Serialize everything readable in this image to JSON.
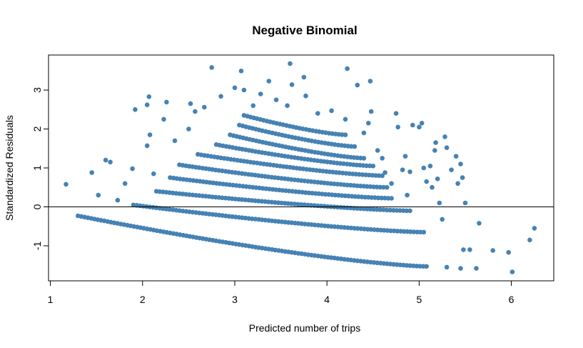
{
  "chart_data": {
    "type": "scatter",
    "title": "Negative Binomial",
    "xlabel": "Predicted number of trips",
    "ylabel": "Standardized Residuals",
    "xlim": [
      0.98,
      6.46
    ],
    "ylim": [
      -1.9,
      3.9
    ],
    "xticks": [
      1,
      2,
      3,
      4,
      5,
      6
    ],
    "yticks": [
      -1,
      0,
      1,
      2,
      3
    ],
    "reference_line_y": 0,
    "grid": false,
    "legend": "none",
    "point_color": "#4682b4",
    "bands": [
      {
        "x_start": 1.3,
        "x_end": 5.08,
        "y_start": -0.23,
        "y_end": -1.53
      },
      {
        "x_start": 1.9,
        "x_end": 5.05,
        "y_start": 0.05,
        "y_end": -0.65
      },
      {
        "x_start": 2.15,
        "x_end": 4.9,
        "y_start": 0.4,
        "y_end": -0.1
      },
      {
        "x_start": 2.3,
        "x_end": 4.7,
        "y_start": 0.75,
        "y_end": 0.22
      },
      {
        "x_start": 2.4,
        "x_end": 4.65,
        "y_start": 1.08,
        "y_end": 0.5
      },
      {
        "x_start": 2.6,
        "x_end": 4.6,
        "y_start": 1.35,
        "y_end": 0.8
      },
      {
        "x_start": 2.8,
        "x_end": 4.5,
        "y_start": 1.6,
        "y_end": 1.05
      },
      {
        "x_start": 2.95,
        "x_end": 4.4,
        "y_start": 1.85,
        "y_end": 1.25
      },
      {
        "x_start": 3.05,
        "x_end": 4.3,
        "y_start": 2.1,
        "y_end": 1.55
      },
      {
        "x_start": 3.1,
        "x_end": 4.2,
        "y_start": 2.35,
        "y_end": 1.85
      }
    ],
    "scattered_points": [
      {
        "x": 1.17,
        "y": 0.58
      },
      {
        "x": 1.45,
        "y": 0.88
      },
      {
        "x": 1.52,
        "y": 0.3
      },
      {
        "x": 1.6,
        "y": 1.2
      },
      {
        "x": 1.65,
        "y": 1.15
      },
      {
        "x": 1.73,
        "y": 0.17
      },
      {
        "x": 1.81,
        "y": 0.6
      },
      {
        "x": 1.89,
        "y": 0.98
      },
      {
        "x": 1.92,
        "y": 2.5
      },
      {
        "x": 2.05,
        "y": 2.62
      },
      {
        "x": 2.07,
        "y": 2.83
      },
      {
        "x": 2.05,
        "y": 1.57
      },
      {
        "x": 2.08,
        "y": 1.85
      },
      {
        "x": 2.12,
        "y": 0.85
      },
      {
        "x": 2.23,
        "y": 2.25
      },
      {
        "x": 2.26,
        "y": 2.69
      },
      {
        "x": 2.35,
        "y": 1.7
      },
      {
        "x": 2.5,
        "y": 2.0
      },
      {
        "x": 2.52,
        "y": 2.65
      },
      {
        "x": 2.57,
        "y": 2.45
      },
      {
        "x": 2.67,
        "y": 2.56
      },
      {
        "x": 2.75,
        "y": 3.58
      },
      {
        "x": 2.85,
        "y": 2.84
      },
      {
        "x": 3.0,
        "y": 3.06
      },
      {
        "x": 3.07,
        "y": 3.49
      },
      {
        "x": 3.1,
        "y": 3.0
      },
      {
        "x": 3.2,
        "y": 2.6
      },
      {
        "x": 3.28,
        "y": 2.9
      },
      {
        "x": 3.37,
        "y": 3.23
      },
      {
        "x": 3.45,
        "y": 2.75
      },
      {
        "x": 3.57,
        "y": 2.6
      },
      {
        "x": 3.6,
        "y": 3.68
      },
      {
        "x": 3.62,
        "y": 3.14
      },
      {
        "x": 3.75,
        "y": 3.33
      },
      {
        "x": 3.77,
        "y": 2.85
      },
      {
        "x": 3.9,
        "y": 2.4
      },
      {
        "x": 4.05,
        "y": 2.47
      },
      {
        "x": 4.2,
        "y": 2.25
      },
      {
        "x": 4.22,
        "y": 3.55
      },
      {
        "x": 4.33,
        "y": 3.13
      },
      {
        "x": 4.4,
        "y": 1.9
      },
      {
        "x": 4.45,
        "y": 2.15
      },
      {
        "x": 4.47,
        "y": 3.23
      },
      {
        "x": 4.48,
        "y": 2.45
      },
      {
        "x": 4.55,
        "y": 1.45
      },
      {
        "x": 4.6,
        "y": 1.25
      },
      {
        "x": 4.63,
        "y": 0.88
      },
      {
        "x": 4.7,
        "y": 0.6
      },
      {
        "x": 4.75,
        "y": 2.4
      },
      {
        "x": 4.77,
        "y": 2.05
      },
      {
        "x": 4.82,
        "y": 0.95
      },
      {
        "x": 4.85,
        "y": 1.3
      },
      {
        "x": 4.87,
        "y": 0.3
      },
      {
        "x": 4.9,
        "y": 0.9
      },
      {
        "x": 4.93,
        "y": 2.1
      },
      {
        "x": 5.0,
        "y": 2.05
      },
      {
        "x": 5.03,
        "y": 2.15
      },
      {
        "x": 5.05,
        "y": 1.0
      },
      {
        "x": 5.08,
        "y": 0.65
      },
      {
        "x": 5.12,
        "y": 1.05
      },
      {
        "x": 5.14,
        "y": 0.5
      },
      {
        "x": 5.17,
        "y": 1.45
      },
      {
        "x": 5.18,
        "y": 1.65
      },
      {
        "x": 5.2,
        "y": 0.72
      },
      {
        "x": 5.22,
        "y": 0.1
      },
      {
        "x": 5.25,
        "y": -0.32
      },
      {
        "x": 5.28,
        "y": 1.8
      },
      {
        "x": 5.3,
        "y": 1.52
      },
      {
        "x": 5.35,
        "y": 0.95
      },
      {
        "x": 5.4,
        "y": 1.3
      },
      {
        "x": 5.42,
        "y": 0.6
      },
      {
        "x": 5.45,
        "y": 1.1
      },
      {
        "x": 5.47,
        "y": 0.75
      },
      {
        "x": 5.5,
        "y": 0.1
      },
      {
        "x": 5.3,
        "y": -1.55
      },
      {
        "x": 5.45,
        "y": -1.58
      },
      {
        "x": 5.48,
        "y": -1.1
      },
      {
        "x": 5.55,
        "y": -1.1
      },
      {
        "x": 5.62,
        "y": -1.58
      },
      {
        "x": 5.65,
        "y": -0.42
      },
      {
        "x": 5.8,
        "y": -1.12
      },
      {
        "x": 5.97,
        "y": -1.17
      },
      {
        "x": 6.01,
        "y": -1.67
      },
      {
        "x": 6.2,
        "y": -0.85
      },
      {
        "x": 6.25,
        "y": -0.55
      }
    ]
  }
}
